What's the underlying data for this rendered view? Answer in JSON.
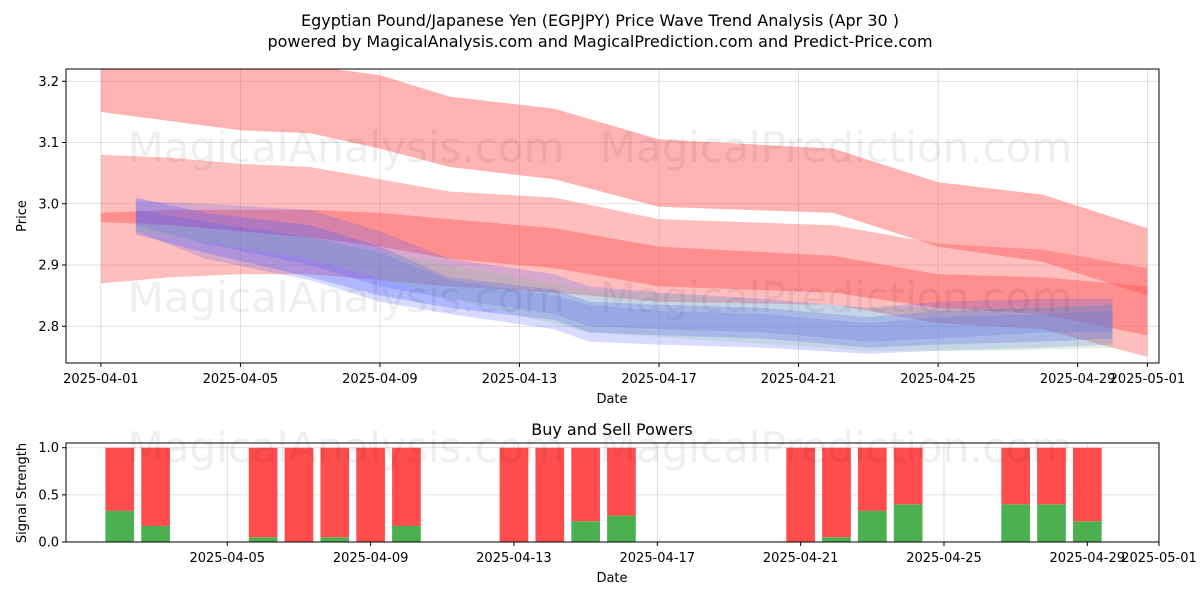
{
  "header": {
    "title_line1": "Egyptian Pound/Japanese Yen (EGPJPY) Price Wave Trend Analysis (Apr 30 )",
    "title_line2": "powered by MagicalAnalysis.com and MagicalPrediction.com and Predict-Price.com"
  },
  "watermarks": [
    "MagicalAnalysis.com",
    "MagicalPrediction.com"
  ],
  "colors": {
    "buy": "#4caf50",
    "sell": "#ff4d4d",
    "band_red": "#ff5555",
    "band_blue": "#4a5cff",
    "band_green": "#8fbf8f"
  },
  "chart_data": [
    {
      "type": "area",
      "title": "",
      "xlabel": "Date",
      "ylabel": "Price",
      "xlim": [
        "2025-03-31T00:00",
        "2025-05-01T08:00"
      ],
      "ylim": [
        2.74,
        3.22
      ],
      "x_ticks": [
        "2025-04-01",
        "2025-04-05",
        "2025-04-09",
        "2025-04-13",
        "2025-04-17",
        "2025-04-21",
        "2025-04-25",
        "2025-04-29",
        "2025-05-01"
      ],
      "y_ticks": [
        2.8,
        2.9,
        3.0,
        3.1,
        3.2
      ],
      "grid": true,
      "series": [
        {
          "band": "red-upper",
          "dates": [
            "2025-04-01",
            "2025-04-03",
            "2025-04-05",
            "2025-04-07",
            "2025-04-09",
            "2025-04-11",
            "2025-04-14",
            "2025-04-17",
            "2025-04-22",
            "2025-04-25",
            "2025-04-28",
            "2025-05-01"
          ],
          "upper": [
            3.25,
            3.24,
            3.235,
            3.225,
            3.21,
            3.175,
            3.155,
            3.105,
            3.09,
            3.035,
            3.015,
            2.96
          ],
          "lower": [
            3.15,
            3.135,
            3.12,
            3.115,
            3.09,
            3.06,
            3.04,
            2.995,
            2.985,
            2.93,
            2.905,
            2.85
          ]
        },
        {
          "band": "red-mid",
          "dates": [
            "2025-04-01",
            "2025-04-03",
            "2025-04-05",
            "2025-04-07",
            "2025-04-09",
            "2025-04-11",
            "2025-04-14",
            "2025-04-17",
            "2025-04-22",
            "2025-04-25",
            "2025-04-28",
            "2025-05-01"
          ],
          "upper": [
            3.08,
            3.075,
            3.065,
            3.06,
            3.04,
            3.02,
            3.01,
            2.975,
            2.965,
            2.935,
            2.925,
            2.895
          ],
          "lower": [
            2.87,
            2.88,
            2.885,
            2.885,
            2.875,
            2.865,
            2.855,
            2.84,
            2.835,
            2.805,
            2.795,
            2.75
          ]
        },
        {
          "band": "red-lower",
          "dates": [
            "2025-04-01",
            "2025-04-03",
            "2025-04-05",
            "2025-04-07",
            "2025-04-09",
            "2025-04-11",
            "2025-04-14",
            "2025-04-17",
            "2025-04-22",
            "2025-04-25",
            "2025-04-28",
            "2025-05-01"
          ],
          "upper": [
            2.985,
            2.99,
            2.99,
            2.99,
            2.985,
            2.975,
            2.96,
            2.93,
            2.915,
            2.885,
            2.88,
            2.865
          ],
          "lower": [
            2.97,
            2.965,
            2.955,
            2.945,
            2.93,
            2.91,
            2.895,
            2.865,
            2.855,
            2.83,
            2.82,
            2.785
          ]
        },
        {
          "band": "blue-1",
          "dates": [
            "2025-04-02",
            "2025-04-04",
            "2025-04-07",
            "2025-04-09",
            "2025-04-11",
            "2025-04-14",
            "2025-04-15",
            "2025-04-17",
            "2025-04-20",
            "2025-04-23",
            "2025-04-25",
            "2025-04-28",
            "2025-04-30"
          ],
          "upper": [
            3.01,
            2.985,
            2.965,
            2.93,
            2.88,
            2.86,
            2.84,
            2.835,
            2.83,
            2.815,
            2.825,
            2.83,
            2.835
          ],
          "lower": [
            2.95,
            2.92,
            2.88,
            2.85,
            2.83,
            2.81,
            2.79,
            2.785,
            2.78,
            2.765,
            2.77,
            2.775,
            2.78
          ]
        },
        {
          "band": "blue-2",
          "dates": [
            "2025-04-02",
            "2025-04-04",
            "2025-04-07",
            "2025-04-09",
            "2025-04-11",
            "2025-04-14",
            "2025-04-15",
            "2025-04-17",
            "2025-04-20",
            "2025-04-23",
            "2025-04-25",
            "2025-04-28",
            "2025-04-30"
          ],
          "upper": [
            3.005,
            3.0,
            2.99,
            2.955,
            2.91,
            2.885,
            2.865,
            2.855,
            2.845,
            2.83,
            2.84,
            2.845,
            2.845
          ],
          "lower": [
            2.965,
            2.935,
            2.9,
            2.865,
            2.845,
            2.82,
            2.8,
            2.795,
            2.79,
            2.775,
            2.78,
            2.79,
            2.79
          ]
        },
        {
          "band": "blue-3",
          "dates": [
            "2025-04-02",
            "2025-04-04",
            "2025-04-07",
            "2025-04-09",
            "2025-04-11",
            "2025-04-14",
            "2025-04-15",
            "2025-04-17",
            "2025-04-20",
            "2025-04-23",
            "2025-04-25",
            "2025-04-28",
            "2025-04-30"
          ],
          "upper": [
            2.99,
            2.97,
            2.945,
            2.92,
            2.875,
            2.85,
            2.835,
            2.825,
            2.82,
            2.805,
            2.815,
            2.82,
            2.825
          ],
          "lower": [
            2.955,
            2.91,
            2.875,
            2.84,
            2.82,
            2.795,
            2.775,
            2.77,
            2.765,
            2.755,
            2.76,
            2.765,
            2.77
          ]
        },
        {
          "band": "green-1",
          "dates": [
            "2025-04-02",
            "2025-04-07",
            "2025-04-11",
            "2025-04-15",
            "2025-04-19",
            "2025-04-23",
            "2025-04-27",
            "2025-04-30"
          ],
          "upper": [
            2.97,
            2.945,
            2.9,
            2.86,
            2.845,
            2.83,
            2.83,
            2.835
          ],
          "lower": [
            2.955,
            2.91,
            2.845,
            2.79,
            2.775,
            2.76,
            2.76,
            2.765
          ]
        }
      ]
    },
    {
      "type": "bar",
      "title": "Buy and Sell Powers",
      "xlabel": "Date",
      "ylabel": "Signal Strength",
      "xlim": [
        "2025-03-31T12:00",
        "2025-05-01T00:00"
      ],
      "ylim": [
        0,
        1.05
      ],
      "x_ticks": [
        "2025-04-05",
        "2025-04-09",
        "2025-04-13",
        "2025-04-17",
        "2025-04-21",
        "2025-04-25",
        "2025-04-29",
        "2025-05-01"
      ],
      "y_ticks": [
        0.0,
        0.5,
        1.0
      ],
      "grid": true,
      "legend": "",
      "dates": [
        "2025-04-02",
        "2025-04-03",
        "2025-04-06",
        "2025-04-07",
        "2025-04-08",
        "2025-04-09",
        "2025-04-10",
        "2025-04-13",
        "2025-04-14",
        "2025-04-15",
        "2025-04-16",
        "2025-04-21",
        "2025-04-22",
        "2025-04-23",
        "2025-04-24",
        "2025-04-27",
        "2025-04-28",
        "2025-04-29"
      ],
      "buy": [
        0.33,
        0.17,
        0.05,
        0.0,
        0.05,
        0.0,
        0.17,
        0.0,
        0.0,
        0.22,
        0.28,
        0.0,
        0.05,
        0.33,
        0.4,
        0.4,
        0.4,
        0.22
      ],
      "sell": [
        0.67,
        0.83,
        0.95,
        1.0,
        0.95,
        1.0,
        0.83,
        1.0,
        1.0,
        0.78,
        0.72,
        1.0,
        0.95,
        0.67,
        0.6,
        0.6,
        0.6,
        0.78
      ]
    }
  ]
}
